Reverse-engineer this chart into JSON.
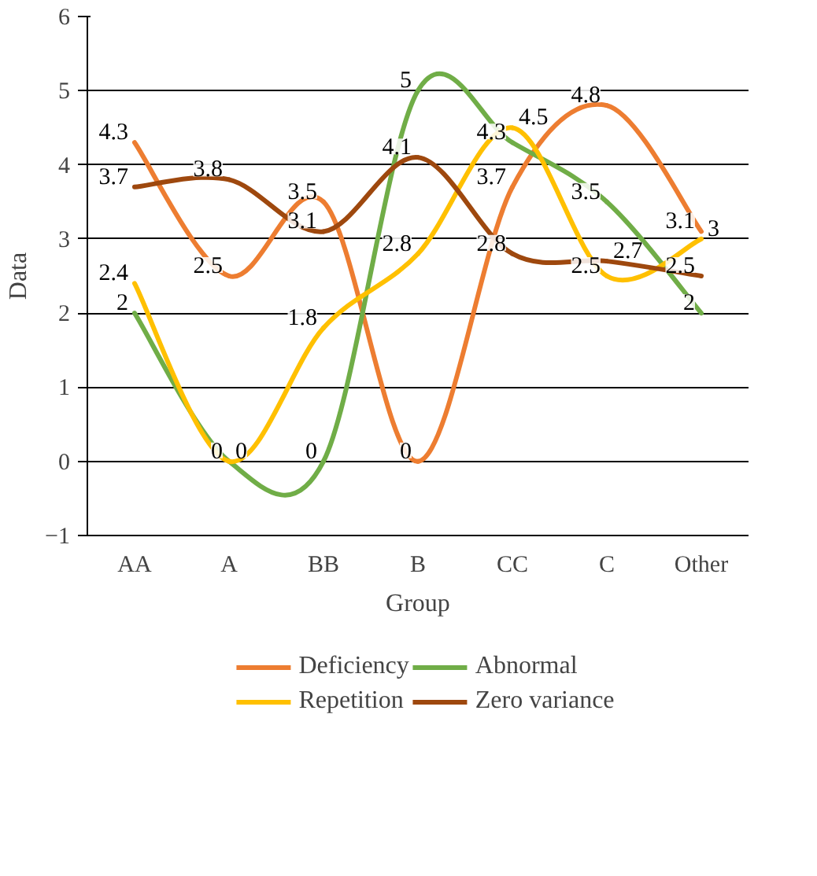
{
  "chart_data": {
    "type": "line",
    "xlabel": "Group",
    "ylabel": "Data",
    "categories": [
      "AA",
      "A",
      "BB",
      "B",
      "CC",
      "C",
      "Other"
    ],
    "series": [
      {
        "name": "Deficiency",
        "color": "#ed7d31",
        "values": [
          4.3,
          2.5,
          3.5,
          0,
          3.7,
          4.8,
          3.1
        ]
      },
      {
        "name": "Abnormal",
        "color": "#70ad47",
        "values": [
          2,
          0,
          0,
          5,
          4.3,
          3.5,
          2
        ]
      },
      {
        "name": "Repetition",
        "color": "#ffc000",
        "values": [
          2.4,
          0,
          1.8,
          2.8,
          4.5,
          2.5,
          3
        ]
      },
      {
        "name": "Zero variance",
        "color": "#9e480e",
        "values": [
          3.7,
          3.8,
          3.1,
          4.1,
          2.8,
          2.7,
          2.5
        ]
      }
    ],
    "ylim": [
      -1,
      6
    ],
    "yticks": [
      {
        "value": -1,
        "label": "−1"
      },
      0,
      1,
      2,
      3,
      4,
      5,
      6
    ],
    "grid": "y",
    "legend": "bottom",
    "data_labels": true,
    "marker": "none",
    "line_style": "solid"
  }
}
